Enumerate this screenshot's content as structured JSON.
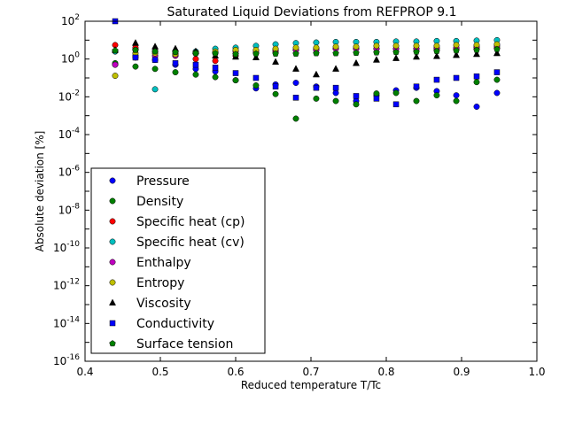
{
  "chart_data": {
    "type": "scatter",
    "title": "Saturated Liquid Deviations from REFPROP 9.1",
    "xlabel": "Reduced temperature T/Tc",
    "ylabel": "Absolute deviation [%]",
    "xlim": [
      0.4,
      1.0
    ],
    "ylim_exponents": [
      -16,
      2
    ],
    "y_scale": "log",
    "grid": false,
    "legend_position": "lower-left",
    "x_ticks": [
      "0.4",
      "0.5",
      "0.6",
      "0.7",
      "0.8",
      "0.9",
      "1.0"
    ],
    "y_tick_exponents": [
      "2",
      "0",
      "-2",
      "-4",
      "-6",
      "-8",
      "-10",
      "-12",
      "-14",
      "-16"
    ],
    "y_tick_base": "10",
    "series": [
      {
        "name": "Pressure",
        "color": "#0000ff",
        "marker": "circle",
        "x": [
          0.44,
          0.467,
          0.493,
          0.52,
          0.547,
          0.573,
          0.6,
          0.627,
          0.653,
          0.68,
          0.707,
          0.733,
          0.76,
          0.787,
          0.813,
          0.84,
          0.867,
          0.893,
          0.92,
          0.947
        ],
        "y": [
          0.5,
          1.5,
          0.9,
          0.5,
          0.3,
          0.22,
          0.075,
          0.028,
          0.045,
          0.055,
          0.035,
          0.016,
          0.006,
          0.012,
          0.022,
          0.03,
          0.02,
          0.012,
          0.003,
          0.016
        ]
      },
      {
        "name": "Density",
        "color": "#008000",
        "marker": "circle",
        "x": [
          0.44,
          0.467,
          0.493,
          0.52,
          0.547,
          0.573,
          0.6,
          0.627,
          0.653,
          0.68,
          0.707,
          0.733,
          0.76,
          0.787,
          0.813,
          0.84,
          0.867,
          0.893,
          0.92,
          0.947
        ],
        "y": [
          0.6,
          0.4,
          0.3,
          0.2,
          0.15,
          0.11,
          0.075,
          0.04,
          0.014,
          0.0007,
          0.008,
          0.006,
          0.004,
          0.015,
          0.016,
          0.006,
          0.012,
          0.006,
          0.06,
          0.08
        ]
      },
      {
        "name": "Specific heat (cp)",
        "color": "#ff0000",
        "marker": "circle",
        "x": [
          0.44,
          0.467,
          0.493,
          0.52,
          0.547,
          0.573,
          0.6,
          0.627,
          0.653,
          0.68,
          0.707,
          0.733,
          0.76,
          0.787,
          0.813,
          0.84,
          0.867,
          0.893,
          0.92,
          0.947
        ],
        "y": [
          5.5,
          4.0,
          2.5,
          1.5,
          1.0,
          0.8,
          1.5,
          2.0,
          2.5,
          3.0,
          3.5,
          3.5,
          3.5,
          3.5,
          3.5,
          3.5,
          3.5,
          3.5,
          4.0,
          4.0
        ]
      },
      {
        "name": "Specific heat (cv)",
        "color": "#00bfbf",
        "marker": "circle",
        "x": [
          0.44,
          0.467,
          0.493,
          0.52,
          0.547,
          0.573,
          0.6,
          0.627,
          0.653,
          0.68,
          0.707,
          0.733,
          0.76,
          0.787,
          0.813,
          0.84,
          0.867,
          0.893,
          0.92,
          0.947
        ],
        "y": [
          2.5,
          3.0,
          0.025,
          2.0,
          2.5,
          3.5,
          4.0,
          5.0,
          6.0,
          7.0,
          7.5,
          8.0,
          8.0,
          8.0,
          8.5,
          8.5,
          9.0,
          9.0,
          9.5,
          10.0
        ]
      },
      {
        "name": "Enthalpy",
        "color": "#bf00bf",
        "marker": "circle",
        "x": [
          0.44,
          0.467,
          0.493,
          0.52,
          0.547,
          0.573,
          0.6,
          0.627,
          0.653,
          0.68,
          0.707,
          0.733,
          0.76,
          0.787,
          0.813,
          0.84,
          0.867,
          0.893,
          0.92,
          0.947
        ],
        "y": [
          0.5,
          1.2,
          1.5,
          1.5,
          2.0,
          2.0,
          2.5,
          2.5,
          3.0,
          3.0,
          3.0,
          3.5,
          3.5,
          3.5,
          3.5,
          3.5,
          4.0,
          4.0,
          4.5,
          5.0
        ]
      },
      {
        "name": "Entropy",
        "color": "#bfbf00",
        "marker": "circle",
        "x": [
          0.44,
          0.467,
          0.493,
          0.52,
          0.547,
          0.573,
          0.6,
          0.627,
          0.653,
          0.68,
          0.707,
          0.733,
          0.76,
          0.787,
          0.813,
          0.84,
          0.867,
          0.893,
          0.92,
          0.947
        ],
        "y": [
          0.13,
          2.0,
          2.0,
          1.8,
          2.2,
          2.5,
          3.0,
          3.0,
          3.5,
          4.0,
          4.0,
          4.5,
          4.5,
          5.0,
          5.0,
          5.0,
          5.0,
          5.5,
          5.5,
          6.0
        ]
      },
      {
        "name": "Viscosity",
        "color": "#000000",
        "marker": "triangle",
        "x": [
          0.44,
          0.467,
          0.493,
          0.52,
          0.547,
          0.573,
          0.6,
          0.627,
          0.653,
          0.68,
          0.707,
          0.733,
          0.76,
          0.787,
          0.813,
          0.84,
          0.867,
          0.893,
          0.92,
          0.947
        ],
        "y": [
          3.0,
          7.0,
          4.5,
          3.5,
          2.5,
          1.5,
          1.3,
          1.2,
          0.7,
          0.3,
          0.15,
          0.3,
          0.6,
          0.9,
          1.1,
          1.3,
          1.4,
          1.6,
          1.8,
          2.0
        ]
      },
      {
        "name": "Conductivity",
        "color": "#0000ff",
        "marker": "square",
        "x": [
          0.44,
          0.467,
          0.493,
          0.52,
          0.547,
          0.573,
          0.6,
          0.627,
          0.653,
          0.68,
          0.707,
          0.733,
          0.76,
          0.787,
          0.813,
          0.84,
          0.867,
          0.893,
          0.92,
          0.947
        ],
        "y": [
          100,
          1.2,
          0.9,
          0.6,
          0.5,
          0.35,
          0.18,
          0.1,
          0.035,
          0.009,
          0.03,
          0.03,
          0.011,
          0.008,
          0.004,
          0.035,
          0.08,
          0.1,
          0.12,
          0.2
        ]
      },
      {
        "name": "Surface tension",
        "color": "#008000",
        "marker": "pentagon",
        "x": [
          0.44,
          0.467,
          0.493,
          0.52,
          0.547,
          0.573,
          0.6,
          0.627,
          0.653,
          0.68,
          0.707,
          0.733,
          0.76,
          0.787,
          0.813,
          0.84,
          0.867,
          0.893,
          0.92,
          0.947
        ],
        "y": [
          2.8,
          3.0,
          2.5,
          2.3,
          2.0,
          2.0,
          1.8,
          1.9,
          1.9,
          1.9,
          2.0,
          2.0,
          2.1,
          2.2,
          2.3,
          2.4,
          2.6,
          2.8,
          3.0,
          3.3
        ]
      }
    ]
  }
}
